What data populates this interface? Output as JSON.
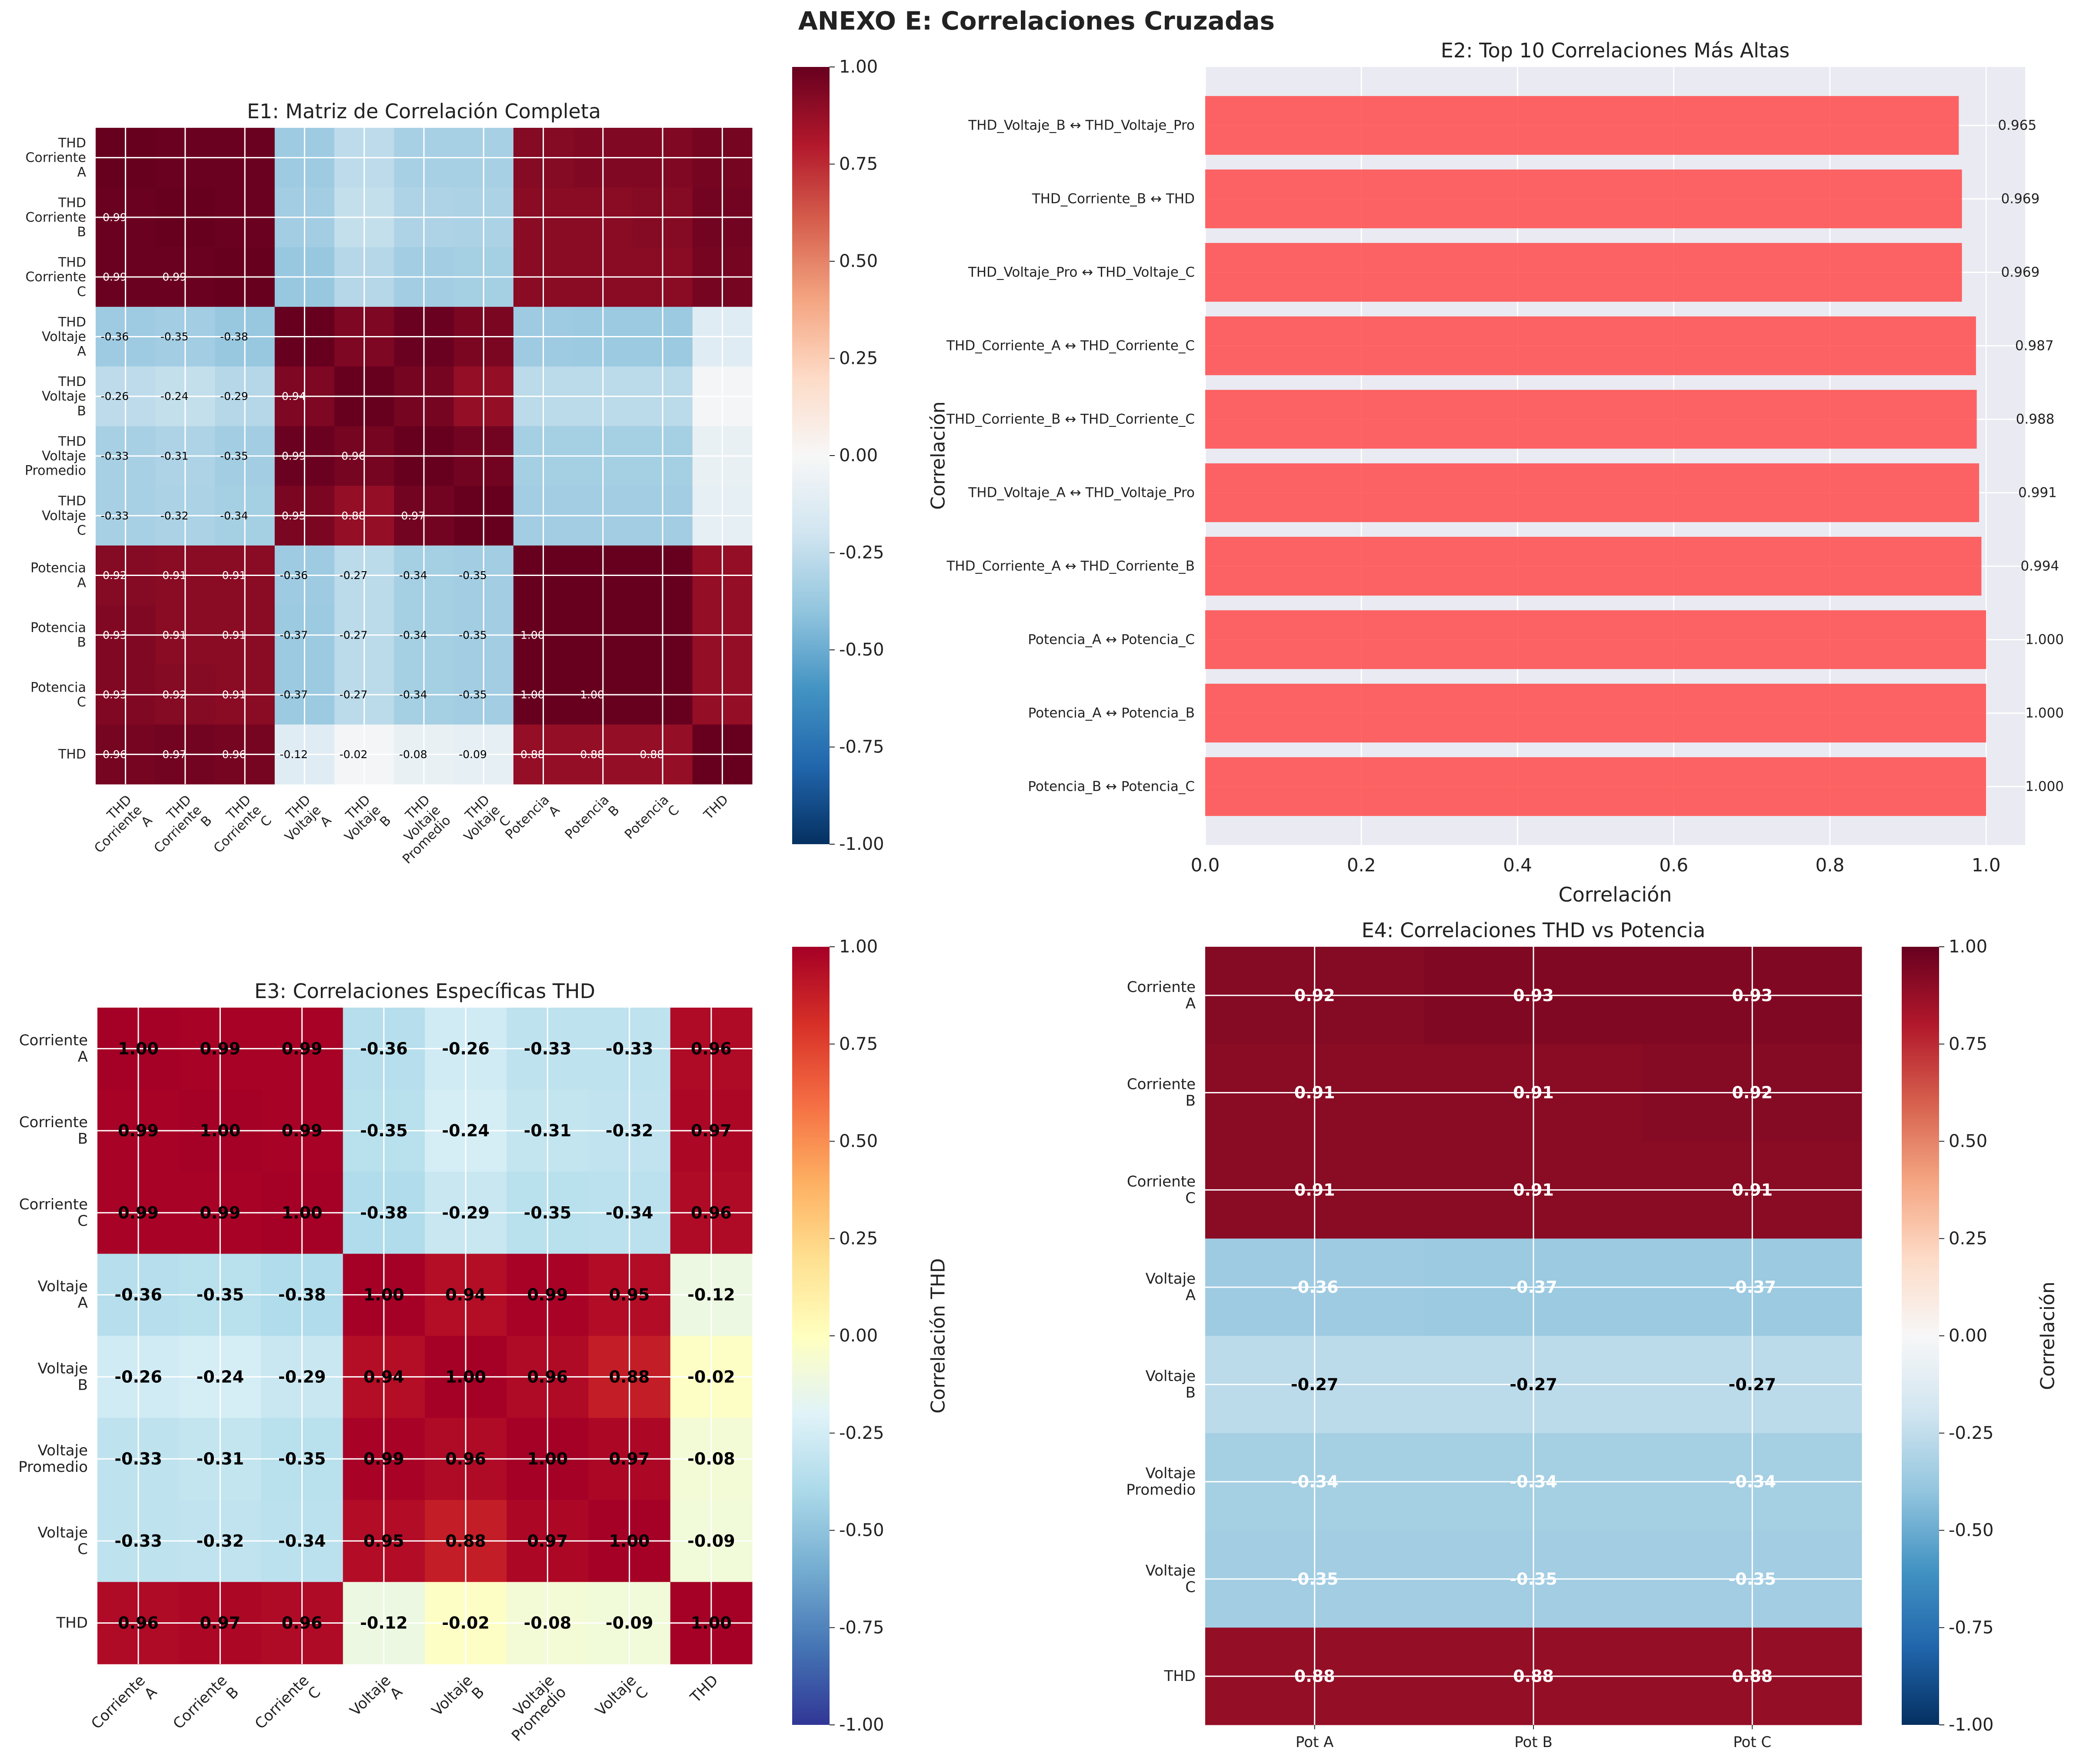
{
  "figure_title": "ANEXO E: Correlaciones Cruzadas",
  "colors": {
    "bar_fill": "#ff4a4a",
    "panel_bg": "#eaeaf2",
    "grid_white": "#ffffff"
  },
  "chart_data": [
    {
      "id": "E1",
      "type": "heatmap",
      "title": "E1: Matriz de Correlación Completa",
      "colormap": "RdBu_r",
      "rows": [
        "THD\nCorriente\nA",
        "THD\nCorriente\nB",
        "THD\nCorriente\nC",
        "THD\nVoltaje\nA",
        "THD\nVoltaje\nB",
        "THD\nVoltaje\nPromedio",
        "THD\nVoltaje\nC",
        "Potencia\nA",
        "Potencia\nB",
        "Potencia\nC",
        "THD"
      ],
      "columns": [
        "THD\nCorriente\nA",
        "THD\nCorriente\nB",
        "THD\nCorriente\nC",
        "THD\nVoltaje\nA",
        "THD\nVoltaje\nB",
        "THD\nVoltaje\nPromedio",
        "THD\nVoltaje\nC",
        "Potencia\nA",
        "Potencia\nB",
        "Potencia\nC",
        "THD"
      ],
      "values": [
        [
          1.0,
          0.99,
          0.99,
          -0.36,
          -0.26,
          -0.33,
          -0.33,
          0.92,
          0.93,
          0.93,
          0.96
        ],
        [
          0.99,
          1.0,
          0.99,
          -0.35,
          -0.24,
          -0.31,
          -0.32,
          0.91,
          0.91,
          0.92,
          0.97
        ],
        [
          0.99,
          0.99,
          1.0,
          -0.38,
          -0.29,
          -0.35,
          -0.34,
          0.91,
          0.91,
          0.91,
          0.96
        ],
        [
          -0.36,
          -0.35,
          -0.38,
          1.0,
          0.94,
          0.99,
          0.95,
          -0.36,
          -0.37,
          -0.37,
          -0.12
        ],
        [
          -0.26,
          -0.24,
          -0.29,
          0.94,
          1.0,
          0.96,
          0.88,
          -0.27,
          -0.27,
          -0.27,
          -0.02
        ],
        [
          -0.33,
          -0.31,
          -0.35,
          0.99,
          0.96,
          1.0,
          0.97,
          -0.34,
          -0.34,
          -0.34,
          -0.08
        ],
        [
          -0.33,
          -0.32,
          -0.34,
          0.95,
          0.88,
          0.97,
          1.0,
          -0.35,
          -0.35,
          -0.35,
          -0.09
        ],
        [
          0.92,
          0.91,
          0.91,
          -0.36,
          -0.27,
          -0.34,
          -0.35,
          1.0,
          1.0,
          1.0,
          0.88
        ],
        [
          0.93,
          0.91,
          0.91,
          -0.37,
          -0.27,
          -0.34,
          -0.35,
          1.0,
          1.0,
          1.0,
          0.88
        ],
        [
          0.93,
          0.92,
          0.91,
          -0.37,
          -0.27,
          -0.34,
          -0.35,
          1.0,
          1.0,
          1.0,
          0.88
        ],
        [
          0.96,
          0.97,
          0.96,
          -0.12,
          -0.02,
          -0.08,
          -0.09,
          0.88,
          0.88,
          0.88,
          1.0
        ]
      ],
      "annotate": "lower-triangle",
      "colorbar": {
        "label": "Correlación",
        "min": -1.0,
        "max": 1.0,
        "ticks": [
          "1.00",
          "0.75",
          "0.50",
          "0.25",
          "0.00",
          "-0.25",
          "-0.50",
          "-0.75",
          "-1.00"
        ]
      }
    },
    {
      "id": "E2",
      "type": "bar",
      "orientation": "horizontal",
      "title": "E2: Top 10 Correlaciones Más Altas",
      "xlabel": "Correlación",
      "xlim": [
        0,
        1.05
      ],
      "xticks": [
        "0.0",
        "0.2",
        "0.4",
        "0.6",
        "0.8",
        "1.0"
      ],
      "categories": [
        "THD_Voltaje_B ↔ THD_Voltaje_Pro",
        "THD_Corriente_B ↔ THD",
        "THD_Voltaje_Pro ↔ THD_Voltaje_C",
        "THD_Corriente_A ↔ THD_Corriente_C",
        "THD_Corriente_B ↔ THD_Corriente_C",
        "THD_Voltaje_A ↔ THD_Voltaje_Pro",
        "THD_Corriente_A ↔ THD_Corriente_B",
        "Potencia_A ↔ Potencia_C",
        "Potencia_A ↔ Potencia_B",
        "Potencia_B ↔ Potencia_C"
      ],
      "values": [
        0.965,
        0.969,
        0.969,
        0.987,
        0.988,
        0.991,
        0.994,
        1.0,
        1.0,
        1.0
      ],
      "value_labels": [
        "0.965",
        "0.969",
        "0.969",
        "0.987",
        "0.988",
        "0.991",
        "0.994",
        "1.000",
        "1.000",
        "1.000"
      ]
    },
    {
      "id": "E3",
      "type": "heatmap",
      "title": "E3: Correlaciones Específicas THD",
      "colormap": "RdYlBu_r",
      "rows": [
        "Corriente\nA",
        "Corriente\nB",
        "Corriente\nC",
        "Voltaje\nA",
        "Voltaje\nB",
        "Voltaje\nPromedio",
        "Voltaje\nC",
        "THD"
      ],
      "columns": [
        "Corriente\nA",
        "Corriente\nB",
        "Corriente\nC",
        "Voltaje\nA",
        "Voltaje\nB",
        "Voltaje\nPromedio",
        "Voltaje\nC",
        "THD"
      ],
      "values": [
        [
          1.0,
          0.99,
          0.99,
          -0.36,
          -0.26,
          -0.33,
          -0.33,
          0.96
        ],
        [
          0.99,
          1.0,
          0.99,
          -0.35,
          -0.24,
          -0.31,
          -0.32,
          0.97
        ],
        [
          0.99,
          0.99,
          1.0,
          -0.38,
          -0.29,
          -0.35,
          -0.34,
          0.96
        ],
        [
          -0.36,
          -0.35,
          -0.38,
          1.0,
          0.94,
          0.99,
          0.95,
          -0.12
        ],
        [
          -0.26,
          -0.24,
          -0.29,
          0.94,
          1.0,
          0.96,
          0.88,
          -0.02
        ],
        [
          -0.33,
          -0.31,
          -0.35,
          0.99,
          0.96,
          1.0,
          0.97,
          -0.08
        ],
        [
          -0.33,
          -0.32,
          -0.34,
          0.95,
          0.88,
          0.97,
          1.0,
          -0.09
        ],
        [
          0.96,
          0.97,
          0.96,
          -0.12,
          -0.02,
          -0.08,
          -0.09,
          1.0
        ]
      ],
      "colorbar": {
        "label": "Correlación THD",
        "min": -1.0,
        "max": 1.0,
        "ticks": [
          "1.00",
          "0.75",
          "0.50",
          "0.25",
          "0.00",
          "-0.25",
          "-0.50",
          "-0.75",
          "-1.00"
        ]
      }
    },
    {
      "id": "E4",
      "type": "heatmap",
      "title": "E4: Correlaciones THD vs Potencia",
      "colormap": "RdBu_r",
      "rows": [
        "Corriente\nA",
        "Corriente\nB",
        "Corriente\nC",
        "Voltaje\nA",
        "Voltaje\nB",
        "Voltaje\nPromedio",
        "Voltaje\nC",
        "THD"
      ],
      "columns": [
        "Pot A",
        "Pot B",
        "Pot C"
      ],
      "values": [
        [
          0.92,
          0.93,
          0.93
        ],
        [
          0.91,
          0.91,
          0.92
        ],
        [
          0.91,
          0.91,
          0.91
        ],
        [
          -0.36,
          -0.37,
          -0.37
        ],
        [
          -0.27,
          -0.27,
          -0.27
        ],
        [
          -0.34,
          -0.34,
          -0.34
        ],
        [
          -0.35,
          -0.35,
          -0.35
        ],
        [
          0.88,
          0.88,
          0.88
        ]
      ],
      "colorbar": {
        "label": "Correlación",
        "min": -1.0,
        "max": 1.0,
        "ticks": [
          "1.00",
          "0.75",
          "0.50",
          "0.25",
          "0.00",
          "-0.25",
          "-0.50",
          "-0.75",
          "-1.00"
        ]
      }
    }
  ]
}
